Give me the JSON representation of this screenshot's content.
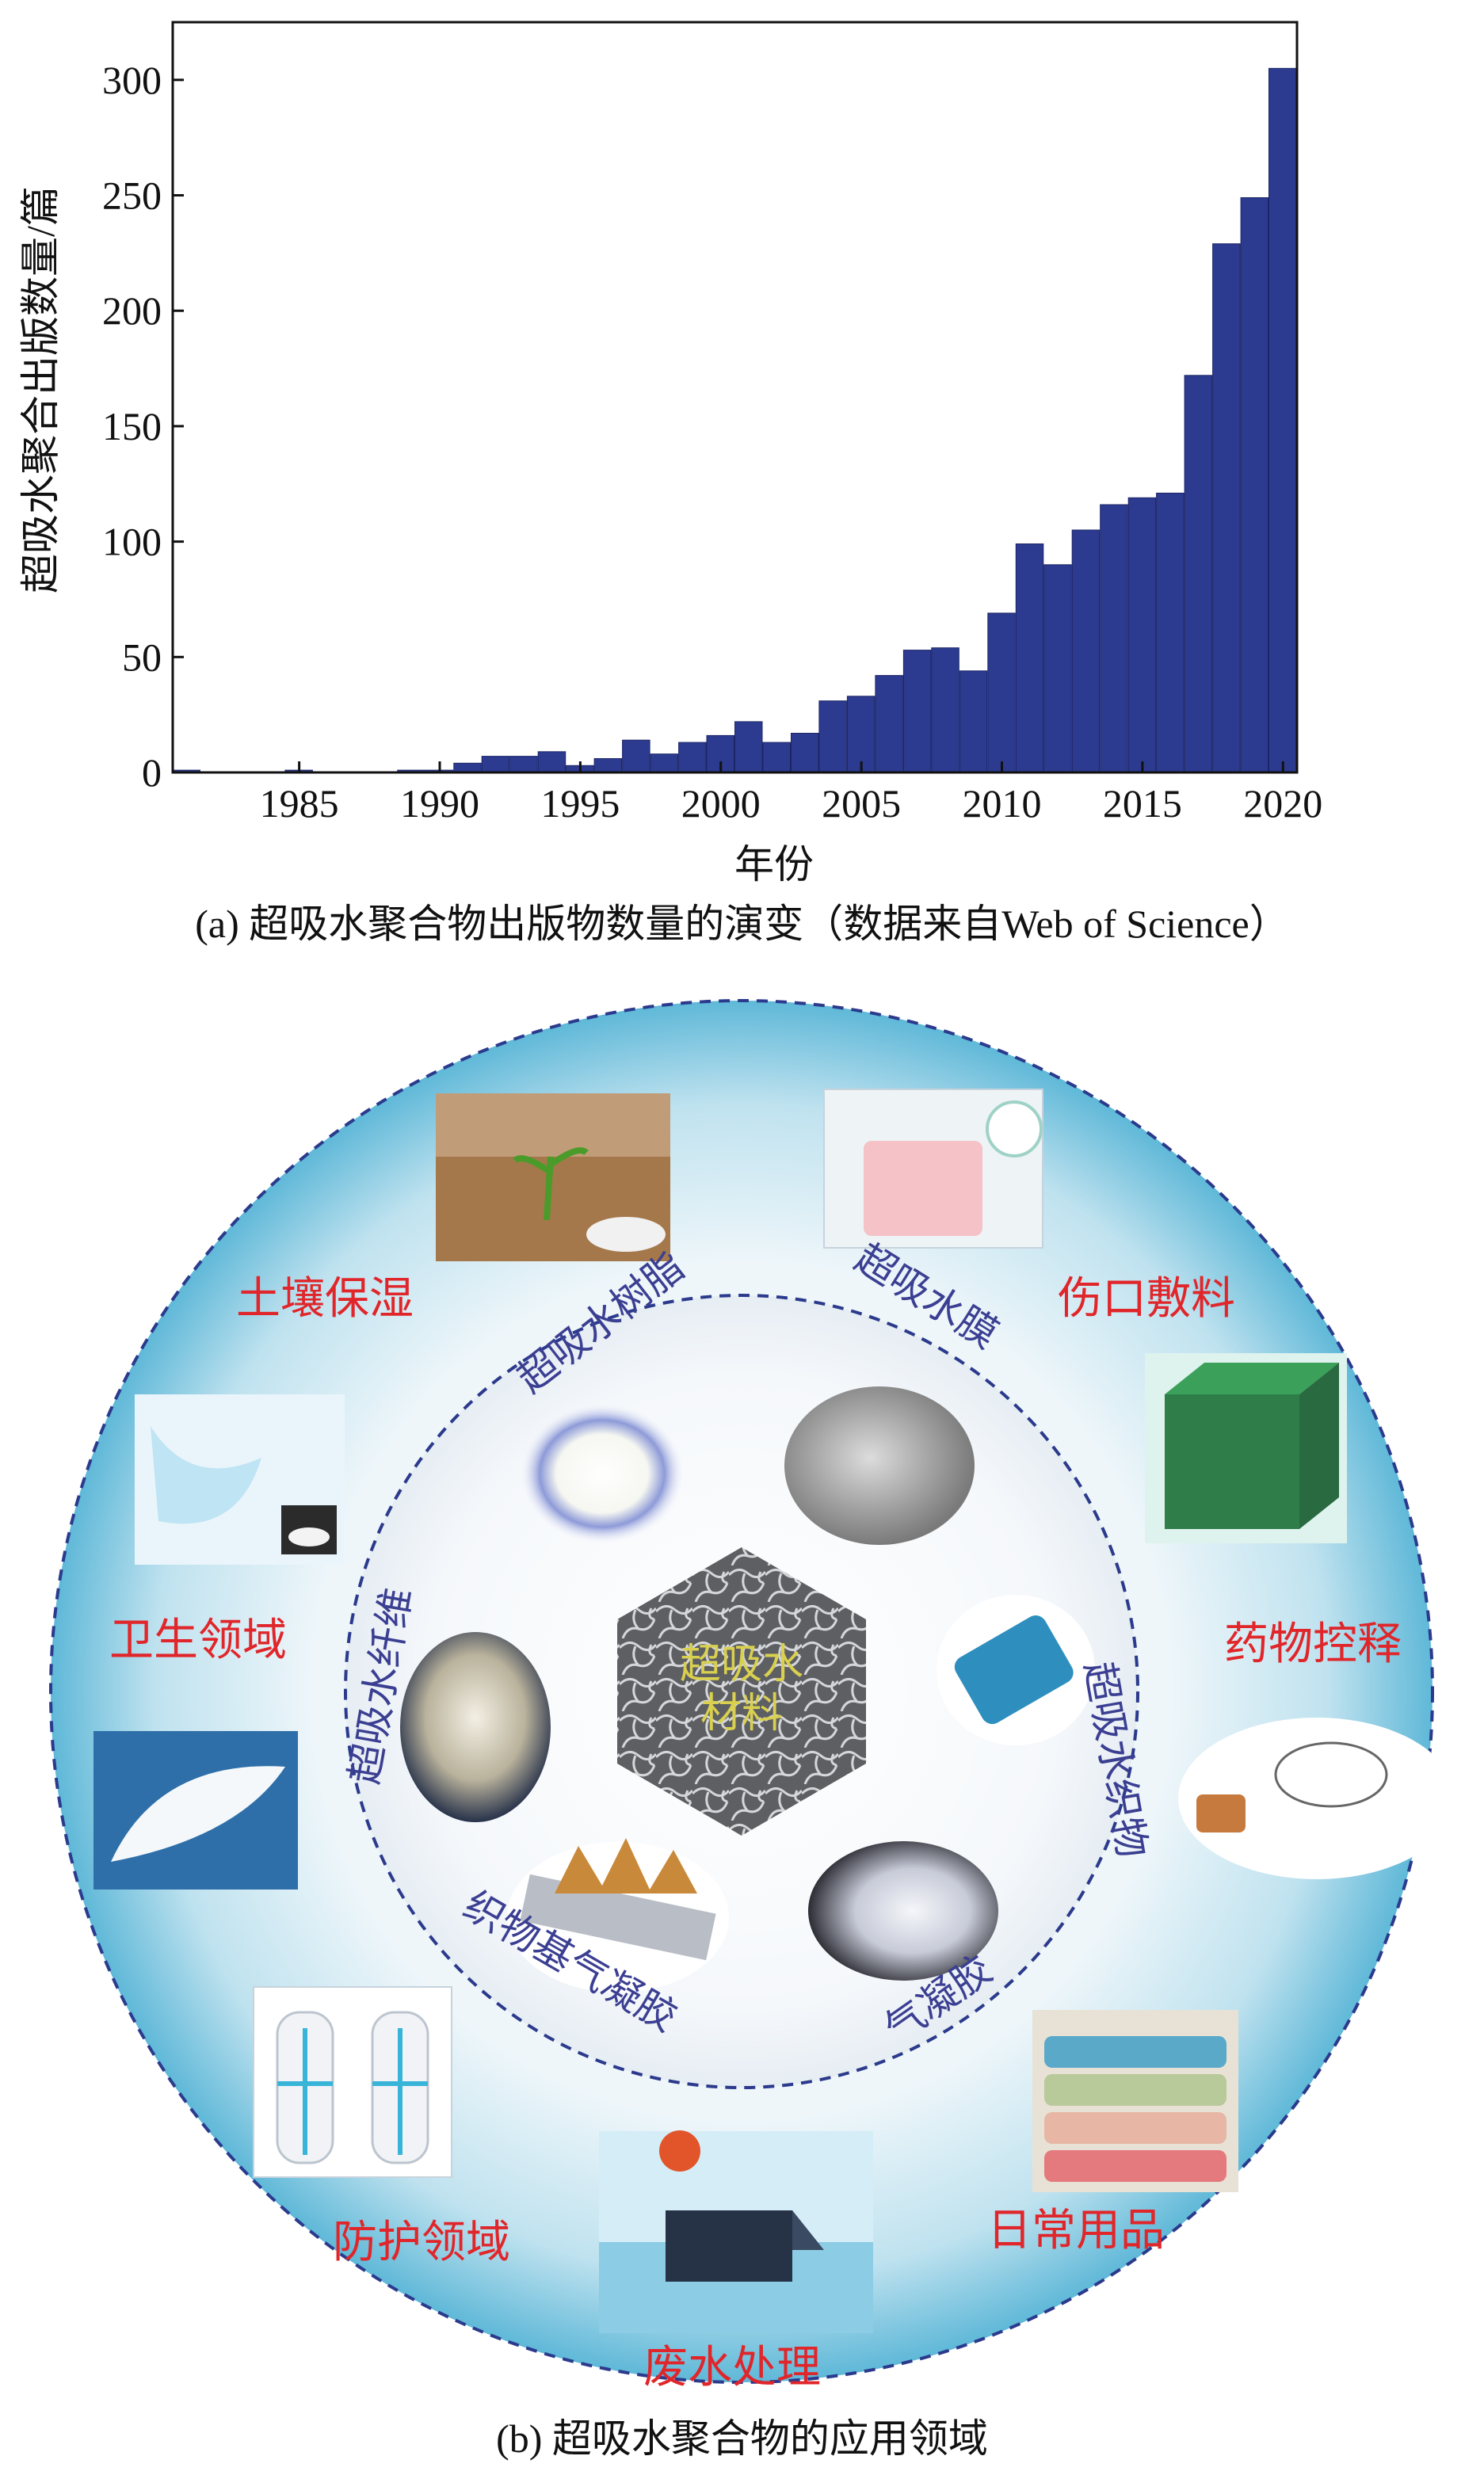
{
  "chart_data": {
    "type": "bar",
    "x": [
      1981,
      1982,
      1983,
      1984,
      1985,
      1986,
      1987,
      1988,
      1989,
      1990,
      1991,
      1992,
      1993,
      1994,
      1995,
      1996,
      1997,
      1998,
      1999,
      2000,
      2001,
      2002,
      2003,
      2004,
      2005,
      2006,
      2007,
      2008,
      2009,
      2010,
      2011,
      2012,
      2013,
      2014,
      2015,
      2016,
      2017,
      2018,
      2019,
      2020
    ],
    "values": [
      1,
      0,
      0,
      0,
      1,
      0,
      0,
      0,
      1,
      1,
      4,
      7,
      7,
      9,
      3,
      6,
      14,
      8,
      13,
      16,
      22,
      13,
      17,
      31,
      33,
      42,
      53,
      54,
      44,
      69,
      99,
      90,
      105,
      116,
      119,
      121,
      172,
      229,
      249,
      305
    ],
    "xlabel": "年份",
    "ylabel": "超吸水聚合出版数量/篇",
    "xticks": [
      1985,
      1990,
      1995,
      2000,
      2005,
      2010,
      2015,
      2020
    ],
    "yticks": [
      0,
      50,
      100,
      150,
      200,
      250,
      300
    ],
    "xlim": [
      1980.5,
      2020.5
    ],
    "ylim": [
      0,
      325
    ],
    "bar_color": "#2c3b8f"
  },
  "captions": {
    "a": "(a) 超吸水聚合物出版物数量的演变（数据来自Web of Science）",
    "b": "(b) 超吸水聚合物的应用领域"
  },
  "diagram": {
    "center_label_line1": "超吸水",
    "center_label_line2": "材料",
    "inner_labels": [
      "超吸水树脂",
      "超吸水膜",
      "超吸水织物",
      "气凝胶",
      "织物基气凝胶",
      "超吸水纤维"
    ],
    "outer_labels": [
      "土壤保湿",
      "伤口敷料",
      "药物控释",
      "日常用品",
      "废水处理",
      "防护领域",
      "卫生领域"
    ],
    "colors": {
      "outer_ring_edge": "#5fb8d8",
      "dashed_border": "#2b3a8c",
      "label_red": "#e0262a",
      "inner_label_blue": "#3b3f92",
      "center_label": "#d9d04f"
    }
  }
}
